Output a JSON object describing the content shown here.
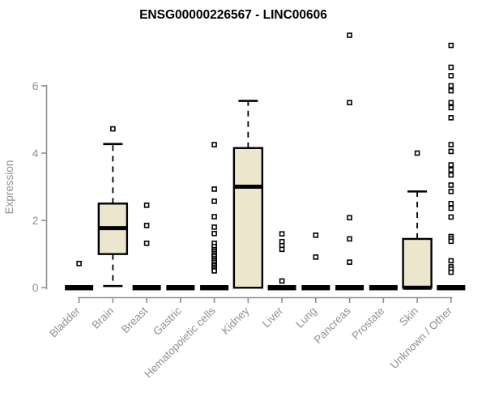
{
  "chart_data": {
    "type": "boxplot",
    "title": "ENSG00000226567 - LINC00606",
    "ylabel": "Expression",
    "xlabel": "",
    "yticks": [
      0,
      2,
      4,
      6
    ],
    "ylim": [
      0,
      7.6
    ],
    "grid": false,
    "legend": "none",
    "categories": [
      "Bladder",
      "Brain",
      "Breast",
      "Gastric",
      "Hematopoietic cells",
      "Kidney",
      "Liver",
      "Lung",
      "Pancreas",
      "Prostate",
      "Skin",
      "Unknown / Other"
    ],
    "groups": [
      {
        "category": "Bladder",
        "q1": 0,
        "median": 0,
        "q3": 0,
        "whisker_low": 0,
        "whisker_high": 0,
        "outliers": [
          0.72
        ]
      },
      {
        "category": "Brain",
        "q1": 1.0,
        "median": 1.77,
        "q3": 2.5,
        "whisker_low": 0.05,
        "whisker_high": 4.27,
        "outliers": [
          4.72
        ]
      },
      {
        "category": "Breast",
        "q1": 0,
        "median": 0,
        "q3": 0,
        "whisker_low": 0,
        "whisker_high": 0,
        "outliers": [
          2.45,
          1.85,
          1.32
        ]
      },
      {
        "category": "Gastric",
        "q1": 0,
        "median": 0,
        "q3": 0,
        "whisker_low": 0,
        "whisker_high": 0,
        "outliers": []
      },
      {
        "category": "Hematopoietic cells",
        "q1": 0,
        "median": 0,
        "q3": 0,
        "whisker_low": 0,
        "whisker_high": 0,
        "outliers": [
          4.25,
          2.93,
          2.57,
          2.11,
          1.8,
          1.61,
          1.32,
          1.22,
          1.13,
          1.08,
          1.02,
          0.97,
          0.92,
          0.86,
          0.81,
          0.76,
          0.7,
          0.65,
          0.6,
          0.55,
          0.5
        ]
      },
      {
        "category": "Kidney",
        "q1": 0,
        "median": 3.0,
        "q3": 4.15,
        "whisker_low": 0,
        "whisker_high": 5.55,
        "outliers": []
      },
      {
        "category": "Liver",
        "q1": 0,
        "median": 0,
        "q3": 0,
        "whisker_low": 0,
        "whisker_high": 0,
        "outliers": [
          1.6,
          1.37,
          1.25,
          1.14,
          0.2
        ]
      },
      {
        "category": "Lung",
        "q1": 0,
        "median": 0,
        "q3": 0,
        "whisker_low": 0,
        "whisker_high": 0,
        "outliers": [
          1.56,
          0.91
        ]
      },
      {
        "category": "Pancreas",
        "q1": 0,
        "median": 0,
        "q3": 0,
        "whisker_low": 0,
        "whisker_high": 0,
        "outliers": [
          7.5,
          5.5,
          2.08,
          1.45,
          0.76
        ]
      },
      {
        "category": "Prostate",
        "q1": 0,
        "median": 0,
        "q3": 0,
        "whisker_low": 0,
        "whisker_high": 0,
        "outliers": []
      },
      {
        "category": "Skin",
        "q1": 0,
        "median": 0,
        "q3": 1.45,
        "whisker_low": 0,
        "whisker_high": 2.86,
        "outliers": [
          4.0
        ]
      },
      {
        "category": "Unknown / Other",
        "q1": 0,
        "median": 0,
        "q3": 0,
        "whisker_low": 0,
        "whisker_high": 0,
        "outliers": [
          7.2,
          6.55,
          6.3,
          6.0,
          5.85,
          5.5,
          5.35,
          5.05,
          4.25,
          4.05,
          3.65,
          3.5,
          3.35,
          3.05,
          2.86,
          2.5,
          2.36,
          2.1,
          1.52,
          1.45,
          1.38,
          0.8,
          0.62,
          0.55,
          0.46
        ]
      }
    ],
    "colors": {
      "box_fill": "#ece6cd",
      "box_stroke": "#000000",
      "median": "#000000",
      "whisker": "#000000",
      "outlier_stroke": "#000000",
      "outlier_fill": "#ffffff",
      "axis": "#8f8f8f",
      "tick_label": "#919191",
      "title": "#000000",
      "background": "#ffffff"
    }
  }
}
